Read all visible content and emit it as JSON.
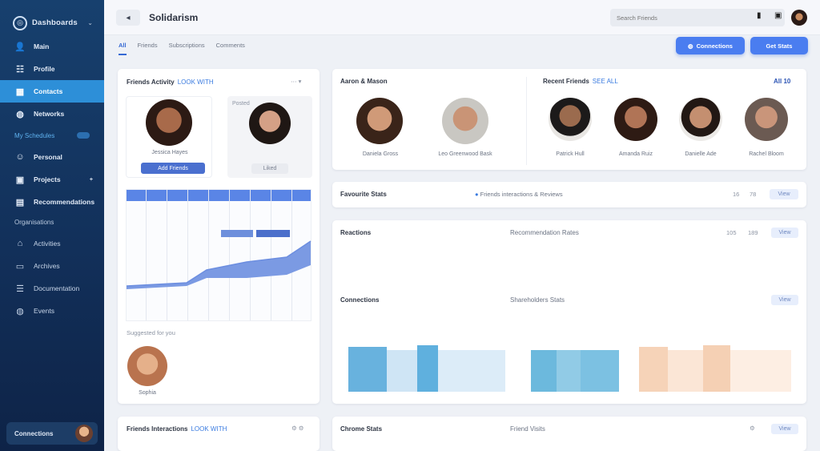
{
  "sidebar": {
    "brand": "Dashboards",
    "items": [
      {
        "label": "Main",
        "icon": "user-icon"
      },
      {
        "label": "Profile",
        "icon": "users-icon"
      },
      {
        "label": "Contacts",
        "icon": "contacts-icon"
      },
      {
        "label": "Networks",
        "icon": "globe-icon"
      }
    ],
    "section": "My Schedules",
    "items2": [
      {
        "label": "Personal",
        "icon": "person-icon"
      },
      {
        "label": "Projects",
        "icon": "folder-icon"
      },
      {
        "label": "Recommendations",
        "icon": "list-icon"
      }
    ],
    "sub": "Organisations",
    "items3": [
      {
        "label": "Activities",
        "icon": "activity-icon"
      },
      {
        "label": "Archives",
        "icon": "archive-icon"
      },
      {
        "label": "Documentation",
        "icon": "doc-icon"
      },
      {
        "label": "Events",
        "icon": "globe-icon"
      }
    ],
    "user": "Connections"
  },
  "header": {
    "title": "Solidarism",
    "search_placeholder": "Search Friends"
  },
  "tabs": [
    "All",
    "Friends",
    "Subscriptions",
    "Comments"
  ],
  "actions": {
    "primary": "Connections",
    "secondary": "Get Stats"
  },
  "profiles_card": {
    "title": "Friends Activity",
    "link": "LOOK WITH",
    "person1": "Jessica Hayes",
    "button": "Add Friends",
    "person2_header": "Posted",
    "person2_caption": "Liked",
    "chart_footer": "Suggested for you",
    "suggested_name": "Sophia"
  },
  "people_card": {
    "left_title": "Aaron & Mason",
    "right_title": "Recent Friends",
    "right_link": "SEE ALL",
    "count": "All 10",
    "people": [
      "Daniela Gross",
      "Leo Greenwood Bask",
      "Patrick Hull",
      "Amanda Ruiz",
      "Danielle Ade",
      "Rachel Bloom"
    ]
  },
  "stats_bar": {
    "label": "Favourite Stats",
    "center": "Friends interactions & Reviews",
    "n1": "16",
    "n2": "78",
    "chip": "View"
  },
  "analytics": {
    "row1_left": "Reactions",
    "row1_center": "Recommendation Rates",
    "row1_n1": "105",
    "row1_n2": "189",
    "row2_left": "Connections",
    "row2_center": "Shareholders Stats",
    "chip": "View"
  },
  "bottom_left": {
    "title": "Friends Interactions",
    "link": "LOOK WITH"
  },
  "bottom_right": {
    "title": "Chrome Stats",
    "center": "Friend Visits"
  },
  "colors": {
    "sidebar": "#17406e",
    "accent": "#4a7df0",
    "active": "#2d8fd8"
  }
}
